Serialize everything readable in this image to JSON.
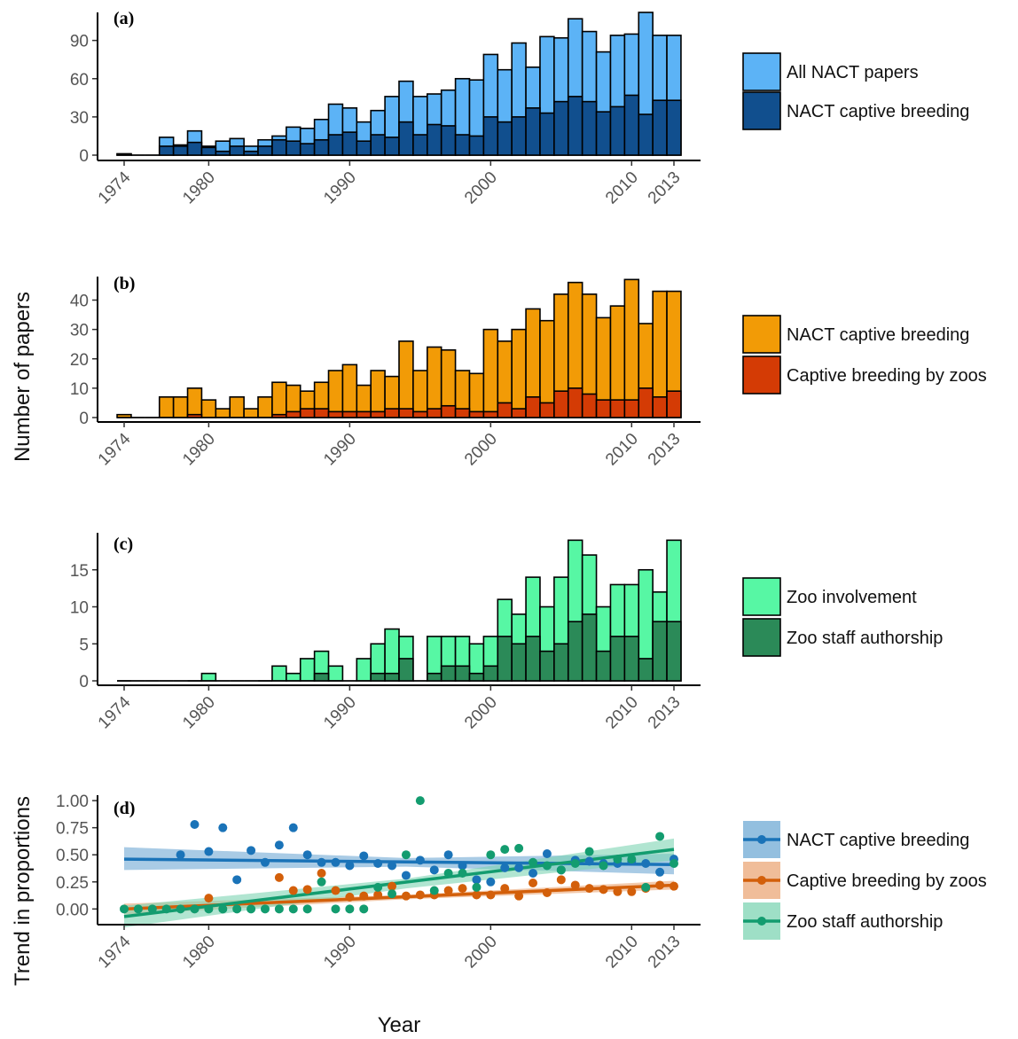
{
  "figure": {
    "ylabel_shared": "Number of papers",
    "xlabel": "Year"
  },
  "chart_data": [
    {
      "type": "bar",
      "panel": "(a)",
      "x_ticks": [
        1974,
        1980,
        1990,
        2000,
        2010,
        2013
      ],
      "yticks": [
        0,
        30,
        60,
        90
      ],
      "ylim": [
        0,
        112
      ],
      "years": [
        1974,
        1975,
        1976,
        1977,
        1978,
        1979,
        1980,
        1981,
        1982,
        1983,
        1984,
        1985,
        1986,
        1987,
        1988,
        1989,
        1990,
        1991,
        1992,
        1993,
        1994,
        1995,
        1996,
        1997,
        1998,
        1999,
        2000,
        2001,
        2002,
        2003,
        2004,
        2005,
        2006,
        2007,
        2008,
        2009,
        2010,
        2011,
        2012,
        2013
      ],
      "grid": false,
      "legend_position": "right",
      "series": [
        {
          "name": "All NACT papers",
          "color": "#5cb3f6",
          "values": [
            1,
            0,
            0,
            14,
            8,
            19,
            7,
            11,
            13,
            7,
            12,
            15,
            22,
            21,
            28,
            40,
            37,
            26,
            35,
            46,
            58,
            46,
            48,
            51,
            60,
            59,
            79,
            67,
            88,
            69,
            93,
            92,
            107,
            97,
            81,
            94,
            95,
            112,
            94,
            94
          ]
        },
        {
          "name": "NACT captive breeding",
          "color": "#114f8e",
          "values": [
            1,
            0,
            0,
            7,
            7,
            10,
            6,
            3,
            7,
            3,
            7,
            12,
            11,
            9,
            12,
            16,
            18,
            11,
            16,
            14,
            26,
            16,
            24,
            23,
            16,
            15,
            30,
            26,
            30,
            37,
            33,
            42,
            46,
            42,
            34,
            38,
            47,
            32,
            43,
            43
          ]
        }
      ]
    },
    {
      "type": "bar",
      "panel": "(b)",
      "x_ticks": [
        1974,
        1980,
        1990,
        2000,
        2010,
        2013
      ],
      "yticks": [
        0,
        10,
        20,
        30,
        40
      ],
      "ylim": [
        0,
        48
      ],
      "years": [
        1974,
        1975,
        1976,
        1977,
        1978,
        1979,
        1980,
        1981,
        1982,
        1983,
        1984,
        1985,
        1986,
        1987,
        1988,
        1989,
        1990,
        1991,
        1992,
        1993,
        1994,
        1995,
        1996,
        1997,
        1998,
        1999,
        2000,
        2001,
        2002,
        2003,
        2004,
        2005,
        2006,
        2007,
        2008,
        2009,
        2010,
        2011,
        2012,
        2013
      ],
      "grid": false,
      "legend_position": "right",
      "series": [
        {
          "name": "NACT captive breeding",
          "color": "#f29b06",
          "values": [
            1,
            0,
            0,
            7,
            7,
            10,
            6,
            3,
            7,
            3,
            7,
            12,
            11,
            9,
            12,
            16,
            18,
            11,
            16,
            14,
            26,
            16,
            24,
            23,
            16,
            15,
            30,
            26,
            30,
            37,
            33,
            42,
            46,
            42,
            34,
            38,
            47,
            32,
            43,
            43
          ]
        },
        {
          "name": "Captive breeding by zoos",
          "color": "#d43b05",
          "values": [
            0,
            0,
            0,
            0,
            0,
            1,
            0,
            0,
            0,
            0,
            0,
            1,
            2,
            3,
            3,
            2,
            2,
            2,
            2,
            3,
            3,
            2,
            3,
            4,
            3,
            2,
            2,
            5,
            3,
            7,
            5,
            9,
            10,
            8,
            6,
            6,
            6,
            10,
            7,
            9
          ]
        }
      ]
    },
    {
      "type": "bar",
      "panel": "(c)",
      "x_ticks": [
        1974,
        1980,
        1990,
        2000,
        2010,
        2013
      ],
      "yticks": [
        0,
        5,
        10,
        15
      ],
      "ylim": [
        0,
        20
      ],
      "years": [
        1974,
        1975,
        1976,
        1977,
        1978,
        1979,
        1980,
        1981,
        1982,
        1983,
        1984,
        1985,
        1986,
        1987,
        1988,
        1989,
        1990,
        1991,
        1992,
        1993,
        1994,
        1995,
        1996,
        1997,
        1998,
        1999,
        2000,
        2001,
        2002,
        2003,
        2004,
        2005,
        2006,
        2007,
        2008,
        2009,
        2010,
        2011,
        2012,
        2013
      ],
      "grid": false,
      "legend_position": "right",
      "series": [
        {
          "name": "Zoo involvement",
          "color": "#57f7a4",
          "values": [
            0,
            0,
            0,
            0,
            0,
            0,
            1,
            0,
            0,
            0,
            0,
            2,
            1,
            3,
            4,
            2,
            0,
            3,
            5,
            7,
            6,
            0,
            6,
            6,
            6,
            5,
            6,
            11,
            9,
            14,
            10,
            14,
            19,
            17,
            10,
            13,
            13,
            15,
            12,
            19
          ]
        },
        {
          "name": "Zoo staff authorship",
          "color": "#2b8a58",
          "values": [
            0,
            0,
            0,
            0,
            0,
            0,
            0,
            0,
            0,
            0,
            0,
            0,
            0,
            0,
            1,
            0,
            0,
            0,
            1,
            1,
            3,
            0,
            1,
            2,
            2,
            1,
            2,
            6,
            5,
            6,
            4,
            5,
            8,
            9,
            4,
            6,
            6,
            3,
            8,
            8
          ]
        }
      ]
    },
    {
      "type": "scatter",
      "panel": "(d)",
      "ylabel": "Trend in proportions",
      "xlabel": "Year",
      "x_ticks": [
        1974,
        1980,
        1990,
        2000,
        2010,
        2013
      ],
      "yticks": [
        "0.00",
        "0.25",
        "0.50",
        "0.75",
        "1.00"
      ],
      "ylim": [
        -0.12,
        1.05
      ],
      "grid": false,
      "legend_position": "right",
      "series": [
        {
          "name": "NACT captive breeding",
          "color": "#1a73b8",
          "band_color": "#6fa9d4",
          "points": [
            [
              1978,
              0.5
            ],
            [
              1979,
              0.78
            ],
            [
              1980,
              0.53
            ],
            [
              1981,
              0.75
            ],
            [
              1982,
              0.27
            ],
            [
              1983,
              0.54
            ],
            [
              1984,
              0.43
            ],
            [
              1985,
              0.59
            ],
            [
              1986,
              0.75
            ],
            [
              1987,
              0.5
            ],
            [
              1988,
              0.43
            ],
            [
              1989,
              0.43
            ],
            [
              1990,
              0.4
            ],
            [
              1991,
              0.49
            ],
            [
              1992,
              0.42
            ],
            [
              1993,
              0.4
            ],
            [
              1994,
              0.31
            ],
            [
              1995,
              0.45
            ],
            [
              1996,
              0.36
            ],
            [
              1997,
              0.5
            ],
            [
              1998,
              0.4
            ],
            [
              1999,
              0.27
            ],
            [
              2000,
              0.25
            ],
            [
              2001,
              0.38
            ],
            [
              2002,
              0.38
            ],
            [
              2003,
              0.33
            ],
            [
              2004,
              0.51
            ],
            [
              2005,
              0.36
            ],
            [
              2006,
              0.45
            ],
            [
              2007,
              0.44
            ],
            [
              2008,
              0.42
            ],
            [
              2009,
              0.42
            ],
            [
              2010,
              0.44
            ],
            [
              2011,
              0.42
            ],
            [
              2012,
              0.34
            ],
            [
              2013,
              0.46
            ]
          ],
          "trend": [
            [
              1974,
              0.46
            ],
            [
              2013,
              0.41
            ]
          ],
          "ci": [
            [
              1974,
              0.36,
              0.57
            ],
            [
              1994,
              0.39,
              0.47
            ],
            [
              2013,
              0.32,
              0.51
            ]
          ]
        },
        {
          "name": "Captive breeding by zoos",
          "color": "#d35f0a",
          "band_color": "#eba777",
          "points": [
            [
              1980,
              0.1
            ],
            [
              1985,
              0.29
            ],
            [
              1986,
              0.17
            ],
            [
              1987,
              0.18
            ],
            [
              1988,
              0.33
            ],
            [
              1989,
              0.17
            ],
            [
              1990,
              0.11
            ],
            [
              1991,
              0.12
            ],
            [
              1992,
              0.13
            ],
            [
              1993,
              0.21
            ],
            [
              1994,
              0.12
            ],
            [
              1995,
              0.13
            ],
            [
              1996,
              0.13
            ],
            [
              1997,
              0.17
            ],
            [
              1998,
              0.19
            ],
            [
              1999,
              0.13
            ],
            [
              2000,
              0.13
            ],
            [
              2001,
              0.19
            ],
            [
              2002,
              0.12
            ],
            [
              2003,
              0.24
            ],
            [
              2004,
              0.15
            ],
            [
              2005,
              0.27
            ],
            [
              2006,
              0.22
            ],
            [
              2007,
              0.19
            ],
            [
              2008,
              0.18
            ],
            [
              2009,
              0.16
            ],
            [
              2010,
              0.16
            ],
            [
              2011,
              0.19
            ],
            [
              2012,
              0.22
            ],
            [
              2013,
              0.21
            ]
          ],
          "trend": [
            [
              1974,
              0.0
            ],
            [
              2013,
              0.22
            ]
          ],
          "ci": [
            [
              1974,
              -0.05,
              0.05
            ],
            [
              1994,
              0.09,
              0.13
            ],
            [
              2013,
              0.18,
              0.26
            ]
          ]
        },
        {
          "name": "Zoo staff authorship",
          "color": "#139c6f",
          "band_color": "#7dd4b3",
          "points": [
            [
              1974,
              0
            ],
            [
              1975,
              0
            ],
            [
              1976,
              0
            ],
            [
              1977,
              0
            ],
            [
              1978,
              0
            ],
            [
              1979,
              0
            ],
            [
              1980,
              0
            ],
            [
              1981,
              0
            ],
            [
              1982,
              0
            ],
            [
              1983,
              0
            ],
            [
              1984,
              0
            ],
            [
              1985,
              0
            ],
            [
              1986,
              0
            ],
            [
              1987,
              0
            ],
            [
              1988,
              0.25
            ],
            [
              1989,
              0
            ],
            [
              1990,
              0
            ],
            [
              1991,
              0
            ],
            [
              1992,
              0.2
            ],
            [
              1993,
              0.14
            ],
            [
              1994,
              0.5
            ],
            [
              1995,
              1.0
            ],
            [
              1996,
              0.17
            ],
            [
              1997,
              0.33
            ],
            [
              1998,
              0.33
            ],
            [
              1999,
              0.2
            ],
            [
              2000,
              0.5
            ],
            [
              2001,
              0.55
            ],
            [
              2002,
              0.56
            ],
            [
              2003,
              0.43
            ],
            [
              2004,
              0.4
            ],
            [
              2005,
              0.36
            ],
            [
              2006,
              0.42
            ],
            [
              2007,
              0.53
            ],
            [
              2008,
              0.4
            ],
            [
              2009,
              0.46
            ],
            [
              2010,
              0.46
            ],
            [
              2011,
              0.2
            ],
            [
              2012,
              0.67
            ],
            [
              2013,
              0.42
            ]
          ],
          "trend": [
            [
              1974,
              -0.07
            ],
            [
              2013,
              0.55
            ]
          ],
          "ci": [
            [
              1974,
              -0.17,
              0.03
            ],
            [
              1994,
              0.19,
              0.28
            ],
            [
              2013,
              0.45,
              0.65
            ]
          ]
        }
      ]
    }
  ]
}
